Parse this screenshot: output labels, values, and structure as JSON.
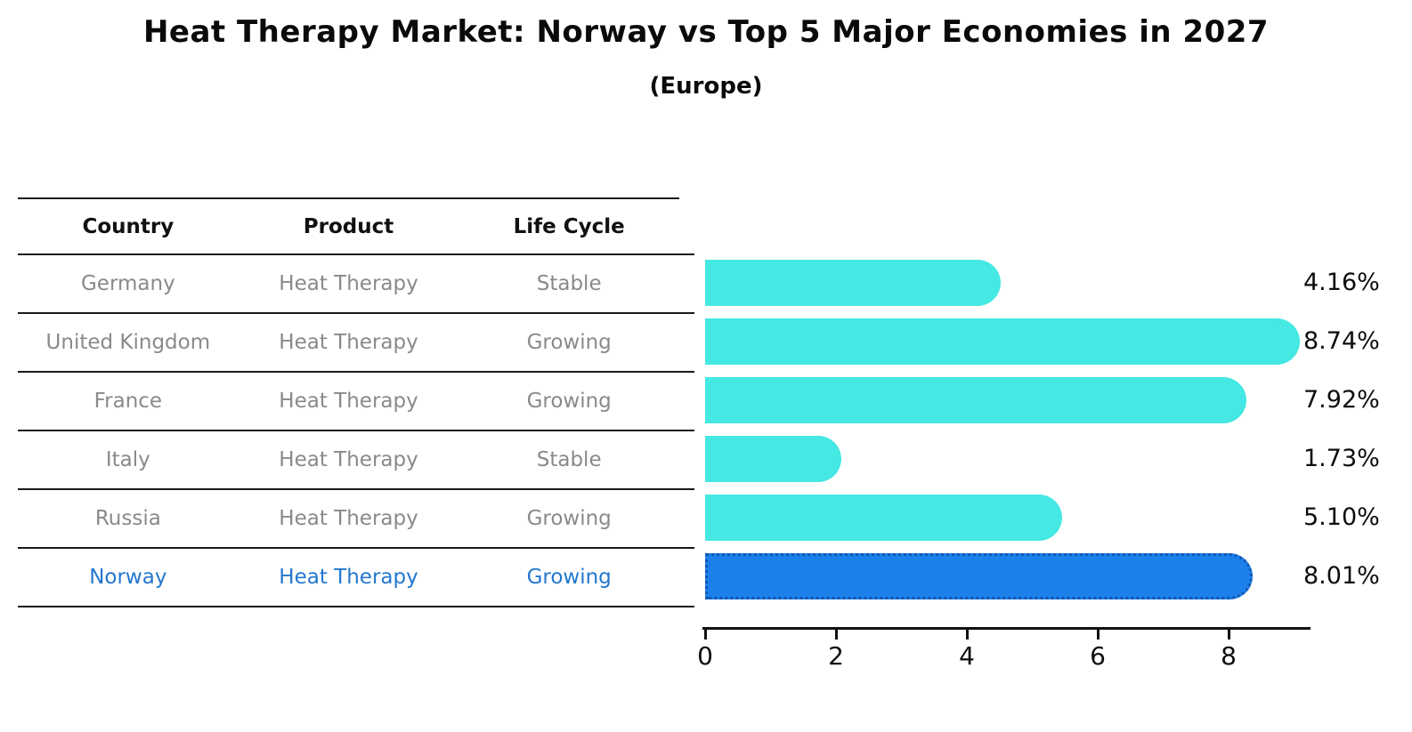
{
  "title": "Heat Therapy Market: Norway vs Top 5 Major Economies in 2027",
  "subtitle": "(Europe)",
  "table": {
    "headers": [
      "Country",
      "Product",
      "Life Cycle"
    ],
    "rows": [
      {
        "country": "Germany",
        "product": "Heat Therapy",
        "life_cycle": "Stable",
        "highlight": false
      },
      {
        "country": "United Kingdom",
        "product": "Heat Therapy",
        "life_cycle": "Growing",
        "highlight": false
      },
      {
        "country": "France",
        "product": "Heat Therapy",
        "life_cycle": "Growing",
        "highlight": false
      },
      {
        "country": "Italy",
        "product": "Heat Therapy",
        "life_cycle": "Stable",
        "highlight": false
      },
      {
        "country": "Russia",
        "product": "Heat Therapy",
        "life_cycle": "Growing",
        "highlight": false
      },
      {
        "country": "Norway",
        "product": "Heat Therapy",
        "life_cycle": "Growing",
        "highlight": true
      }
    ]
  },
  "chart_data": {
    "type": "bar",
    "orientation": "horizontal",
    "title": "Heat Therapy Market: Norway vs Top 5 Major Economies in 2027 (Europe)",
    "categories": [
      "Germany",
      "United Kingdom",
      "France",
      "Italy",
      "Russia",
      "Norway"
    ],
    "values": [
      4.16,
      8.74,
      7.92,
      1.73,
      5.1,
      8.01
    ],
    "value_labels": [
      "4.16%",
      "8.74%",
      "7.92%",
      "1.73%",
      "5.10%",
      "8.01%"
    ],
    "unit": "percent CAGR/market share shown as %",
    "x_ticks": [
      "0",
      "2",
      "4",
      "6",
      "8"
    ],
    "xlim": [
      0,
      9.25
    ],
    "grid": false,
    "legend": false,
    "highlight_index": 5,
    "colors": {
      "bar": "#45e8e2",
      "highlight_bar": "#1b80ea",
      "highlight_border": "#1457b0",
      "highlight_text": "#2377ce",
      "cell_text": "#8a8a8a",
      "header_text": "#111111",
      "axis": "#111111"
    }
  }
}
